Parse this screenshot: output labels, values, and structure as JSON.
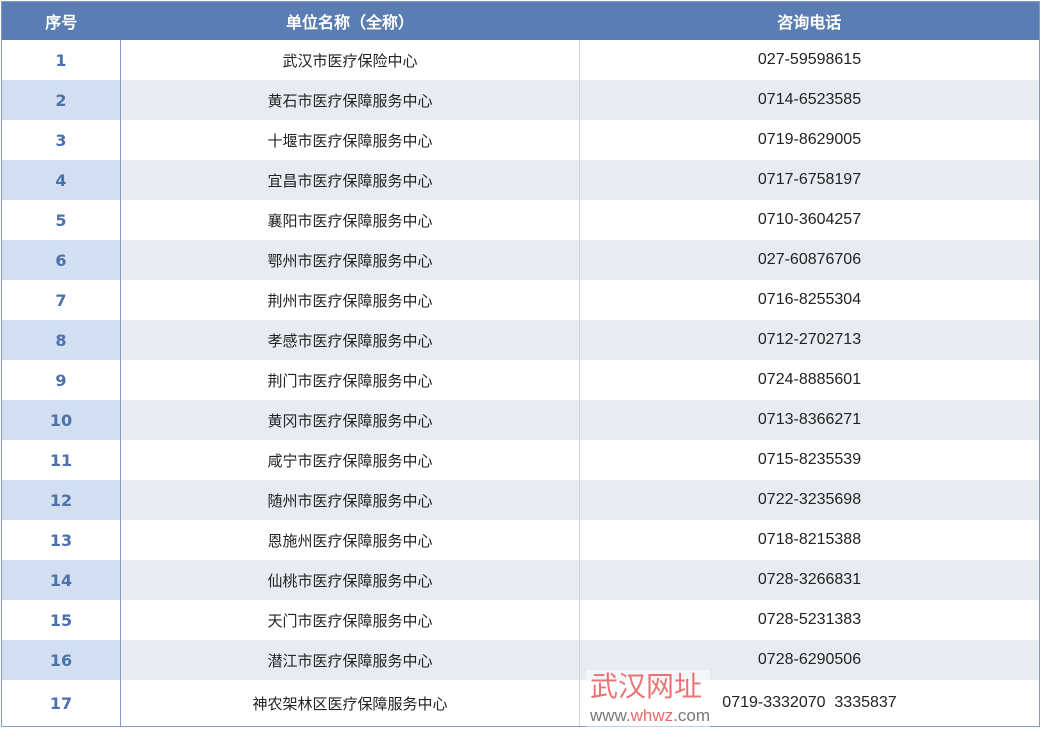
{
  "table": {
    "headers": [
      "序号",
      "单位名称（全称）",
      "咨询电话"
    ],
    "rows": [
      {
        "no": "1",
        "name": "武汉市医疗保险中心",
        "phone": "027-59598615"
      },
      {
        "no": "2",
        "name": "黄石市医疗保障服务中心",
        "phone": "0714-6523585"
      },
      {
        "no": "3",
        "name": "十堰市医疗保障服务中心",
        "phone": "0719-8629005"
      },
      {
        "no": "4",
        "name": "宜昌市医疗保障服务中心",
        "phone": "0717-6758197"
      },
      {
        "no": "5",
        "name": "襄阳市医疗保障服务中心",
        "phone": "0710-3604257"
      },
      {
        "no": "6",
        "name": "鄂州市医疗保障服务中心",
        "phone": "027-60876706"
      },
      {
        "no": "7",
        "name": "荆州市医疗保障服务中心",
        "phone": "0716-8255304"
      },
      {
        "no": "8",
        "name": "孝感市医疗保障服务中心",
        "phone": "0712-2702713"
      },
      {
        "no": "9",
        "name": "荆门市医疗保障服务中心",
        "phone": "0724-8885601"
      },
      {
        "no": "10",
        "name": "黄冈市医疗保障服务中心",
        "phone": "0713-8366271"
      },
      {
        "no": "11",
        "name": "咸宁市医疗保障服务中心",
        "phone": "0715-8235539"
      },
      {
        "no": "12",
        "name": "随州市医疗保障服务中心",
        "phone": "0722-3235698"
      },
      {
        "no": "13",
        "name": "恩施州医疗保障服务中心",
        "phone": "0718-8215388"
      },
      {
        "no": "14",
        "name": "仙桃市医疗保障服务中心",
        "phone": "0728-3266831"
      },
      {
        "no": "15",
        "name": "天门市医疗保障服务中心",
        "phone": "0728-5231383"
      },
      {
        "no": "16",
        "name": "潜江市医疗保障服务中心",
        "phone": "0728-6290506"
      },
      {
        "no": "17",
        "name": "神农架林区医疗保障服务中心",
        "phone": "0719-3332070  3335837"
      }
    ]
  },
  "watermark": {
    "cn": "武汉网址",
    "url_prefix": "www.",
    "url_brand": "whwz",
    "url_suffix": ".com"
  },
  "colors": {
    "header_bg": "#5a7db4",
    "number_text": "#4a72ad",
    "stripe": "#e8ecf2"
  }
}
